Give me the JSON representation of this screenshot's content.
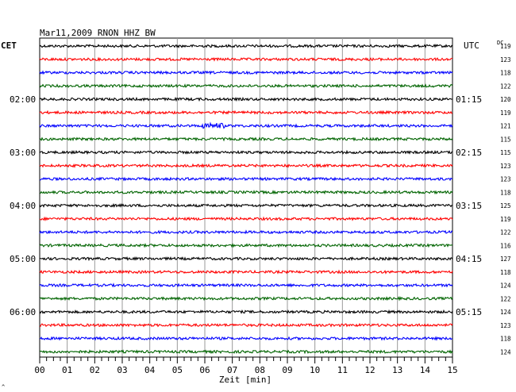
{
  "chart_data": {
    "type": "line",
    "title": "Mar11,2009   RNON HHZ BW",
    "left_axis_label": "CET",
    "right_axis_label": "UTC",
    "dc_label": "DC",
    "xlabel": "Zeit [min]",
    "xlim": [
      0,
      15
    ],
    "x_ticks": [
      "00",
      "01",
      "02",
      "03",
      "04",
      "05",
      "06",
      "07",
      "08",
      "09",
      "10",
      "11",
      "12",
      "13",
      "14",
      "15"
    ],
    "rows_per_hour": 4,
    "trace_colors": [
      "#000000",
      "#ff0000",
      "#0000ff",
      "#006400"
    ],
    "left_hour_labels": [
      {
        "row": 4,
        "label": "02:00"
      },
      {
        "row": 8,
        "label": "03:00"
      },
      {
        "row": 12,
        "label": "04:00"
      },
      {
        "row": 16,
        "label": "05:00"
      },
      {
        "row": 20,
        "label": "06:00"
      }
    ],
    "right_hour_labels": [
      {
        "row": 4,
        "label": "01:15"
      },
      {
        "row": 8,
        "label": "02:15"
      },
      {
        "row": 12,
        "label": "03:15"
      },
      {
        "row": 16,
        "label": "04:15"
      },
      {
        "row": 20,
        "label": "05:15"
      }
    ],
    "dc_values": [
      119,
      123,
      118,
      122,
      120,
      119,
      121,
      115,
      115,
      123,
      123,
      118,
      125,
      119,
      122,
      116,
      127,
      118,
      124,
      122,
      124,
      123,
      118,
      124
    ],
    "events": [
      {
        "row": 6,
        "x_min": 6.3,
        "amplitude": 2.2
      }
    ]
  },
  "footer_mark": "^"
}
